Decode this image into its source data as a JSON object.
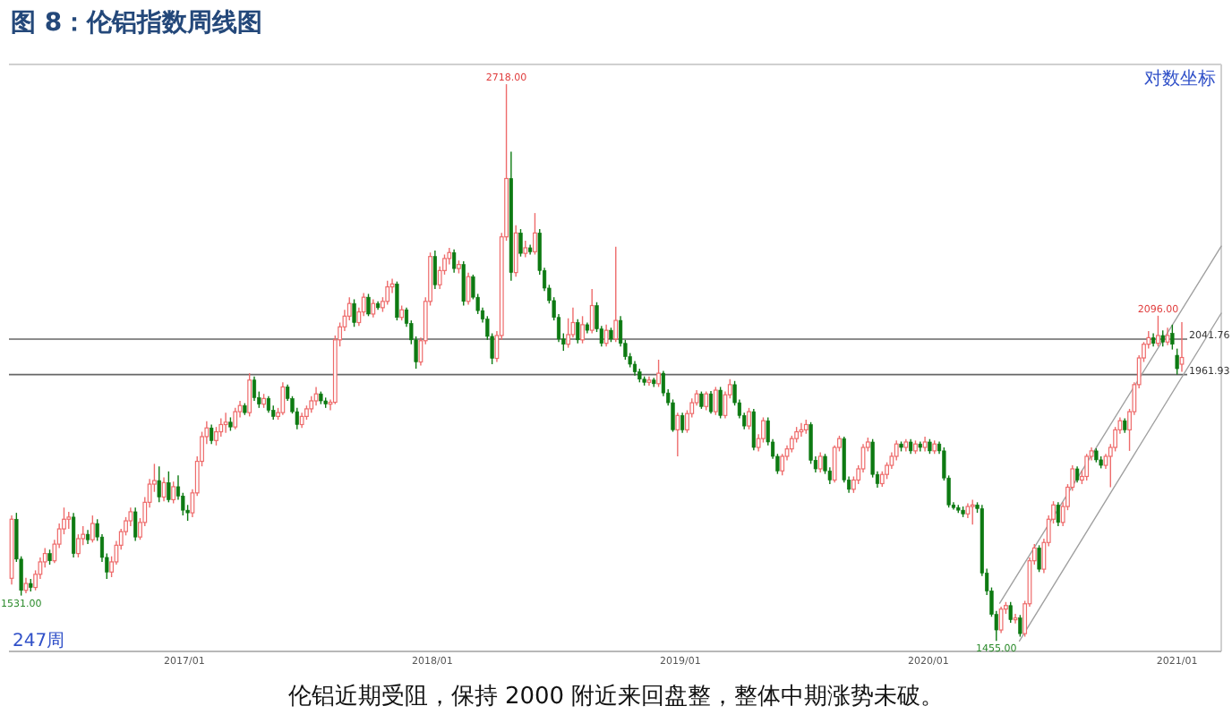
{
  "chart_data": {
    "type": "candlestick",
    "title": "图 8：伦铝指数周线图",
    "annotations": [
      "对数坐标",
      "247周",
      "伦铝近期受阻，保持 2000 附近来回盘整，整体中期涨势未破。",
      {
        "text": "2718.00",
        "x": "2018-04-20",
        "y": 2718
      },
      {
        "text": "1531.00",
        "x": "2016-05-06",
        "y": 1531
      },
      {
        "text": "1455.00",
        "x": "2020-04-10",
        "y": 1455
      },
      {
        "text": "2096.00",
        "x": "2020-12-04",
        "y": 2096
      }
    ],
    "log": true,
    "tick_labels": "x",
    "ylim": [
      1438,
      2779
    ],
    "xlim": [
      "2016-04-18",
      "2021-03-07"
    ],
    "xticks": [
      {
        "value": "2017-01",
        "label": "2017/01"
      },
      {
        "value": "2018-01",
        "label": "2018/01"
      },
      {
        "value": "2019-01",
        "label": "2019/01"
      },
      {
        "value": "2020-01",
        "label": "2020/01"
      },
      {
        "value": "2021-01",
        "label": "2021/01"
      }
    ],
    "x": [
      "2016-04-22",
      "2016-04-29",
      "2016-05-06",
      "2016-05-13",
      "2016-05-20",
      "2016-05-27",
      "2016-06-03",
      "2016-06-10",
      "2016-06-17",
      "2016-06-24",
      "2016-07-01",
      "2016-07-08",
      "2016-07-15",
      "2016-07-22",
      "2016-07-29",
      "2016-08-05",
      "2016-08-12",
      "2016-08-19",
      "2016-08-26",
      "2016-09-02",
      "2016-09-09",
      "2016-09-16",
      "2016-09-23",
      "2016-09-30",
      "2016-10-07",
      "2016-10-14",
      "2016-10-21",
      "2016-10-28",
      "2016-11-04",
      "2016-11-11",
      "2016-11-18",
      "2016-11-25",
      "2016-12-02",
      "2016-12-09",
      "2016-12-16",
      "2016-12-23",
      "2016-12-30",
      "2017-01-06",
      "2017-01-13",
      "2017-01-20",
      "2017-01-27",
      "2017-02-03",
      "2017-02-10",
      "2017-02-17",
      "2017-02-24",
      "2017-03-03",
      "2017-03-10",
      "2017-03-17",
      "2017-03-24",
      "2017-03-31",
      "2017-04-07",
      "2017-04-14",
      "2017-04-21",
      "2017-04-28",
      "2017-05-05",
      "2017-05-12",
      "2017-05-19",
      "2017-05-26",
      "2017-06-02",
      "2017-06-09",
      "2017-06-16",
      "2017-06-23",
      "2017-06-30",
      "2017-07-07",
      "2017-07-14",
      "2017-07-21",
      "2017-07-28",
      "2017-08-04",
      "2017-08-11",
      "2017-08-18",
      "2017-08-25",
      "2017-09-01",
      "2017-09-08",
      "2017-09-15",
      "2017-09-22",
      "2017-09-29",
      "2017-10-06",
      "2017-10-13",
      "2017-10-20",
      "2017-10-27",
      "2017-11-03",
      "2017-11-10",
      "2017-11-17",
      "2017-11-24",
      "2017-12-01",
      "2017-12-08",
      "2017-12-15",
      "2017-12-22",
      "2017-12-29",
      "2018-01-05",
      "2018-01-12",
      "2018-01-19",
      "2018-01-26",
      "2018-02-02",
      "2018-02-09",
      "2018-02-16",
      "2018-02-23",
      "2018-03-02",
      "2018-03-09",
      "2018-03-16",
      "2018-03-23",
      "2018-03-30",
      "2018-04-06",
      "2018-04-13",
      "2018-04-20",
      "2018-04-27",
      "2018-05-04",
      "2018-05-11",
      "2018-05-18",
      "2018-05-25",
      "2018-06-01",
      "2018-06-08",
      "2018-06-15",
      "2018-06-22",
      "2018-06-29",
      "2018-07-06",
      "2018-07-13",
      "2018-07-20",
      "2018-07-27",
      "2018-08-03",
      "2018-08-10",
      "2018-08-17",
      "2018-08-24",
      "2018-08-31",
      "2018-09-07",
      "2018-09-14",
      "2018-09-21",
      "2018-09-28",
      "2018-10-05",
      "2018-10-12",
      "2018-10-19",
      "2018-10-26",
      "2018-11-02",
      "2018-11-09",
      "2018-11-16",
      "2018-11-23",
      "2018-11-30",
      "2018-12-07",
      "2018-12-14",
      "2018-12-21",
      "2018-12-28",
      "2019-01-04",
      "2019-01-11",
      "2019-01-18",
      "2019-01-25",
      "2019-02-01",
      "2019-02-08",
      "2019-02-15",
      "2019-02-22",
      "2019-03-01",
      "2019-03-08",
      "2019-03-15",
      "2019-03-22",
      "2019-03-29",
      "2019-04-05",
      "2019-04-12",
      "2019-04-19",
      "2019-04-26",
      "2019-05-03",
      "2019-05-10",
      "2019-05-17",
      "2019-05-24",
      "2019-05-31",
      "2019-06-07",
      "2019-06-14",
      "2019-06-21",
      "2019-06-28",
      "2019-07-05",
      "2019-07-12",
      "2019-07-19",
      "2019-07-26",
      "2019-08-02",
      "2019-08-09",
      "2019-08-16",
      "2019-08-23",
      "2019-08-30",
      "2019-09-06",
      "2019-09-13",
      "2019-09-20",
      "2019-09-27",
      "2019-10-04",
      "2019-10-11",
      "2019-10-18",
      "2019-10-25",
      "2019-11-01",
      "2019-11-08",
      "2019-11-15",
      "2019-11-22",
      "2019-11-29",
      "2019-12-06",
      "2019-12-13",
      "2019-12-20",
      "2019-12-27",
      "2020-01-03",
      "2020-01-10",
      "2020-01-17",
      "2020-01-24",
      "2020-01-31",
      "2020-02-07",
      "2020-02-14",
      "2020-02-21",
      "2020-02-28",
      "2020-03-06",
      "2020-03-13",
      "2020-03-20",
      "2020-03-27",
      "2020-04-03",
      "2020-04-10",
      "2020-04-17",
      "2020-04-24",
      "2020-05-01",
      "2020-05-08",
      "2020-05-15",
      "2020-05-22",
      "2020-05-29",
      "2020-06-05",
      "2020-06-12",
      "2020-06-19",
      "2020-06-26",
      "2020-07-03",
      "2020-07-10",
      "2020-07-17",
      "2020-07-24",
      "2020-07-31",
      "2020-08-07",
      "2020-08-14",
      "2020-08-21",
      "2020-08-28",
      "2020-09-04",
      "2020-09-11",
      "2020-09-18",
      "2020-09-25",
      "2020-10-02",
      "2020-10-09",
      "2020-10-16",
      "2020-10-23",
      "2020-10-30",
      "2020-11-06",
      "2020-11-13",
      "2020-11-20",
      "2020-11-27",
      "2020-12-04",
      "2020-12-11",
      "2020-12-18",
      "2020-12-25",
      "2021-01-01",
      "2021-01-08"
    ],
    "ohlc": [
      [
        1561,
        1675,
        1550,
        1668
      ],
      [
        1668,
        1680,
        1590,
        1595
      ],
      [
        1595,
        1600,
        1531,
        1540
      ],
      [
        1540,
        1562,
        1535,
        1552
      ],
      [
        1552,
        1560,
        1538,
        1545
      ],
      [
        1545,
        1575,
        1540,
        1568
      ],
      [
        1568,
        1598,
        1560,
        1590
      ],
      [
        1590,
        1615,
        1580,
        1605
      ],
      [
        1605,
        1612,
        1585,
        1592
      ],
      [
        1592,
        1630,
        1588,
        1622
      ],
      [
        1622,
        1660,
        1615,
        1650
      ],
      [
        1650,
        1690,
        1640,
        1668
      ],
      [
        1668,
        1682,
        1650,
        1672
      ],
      [
        1672,
        1680,
        1598,
        1605
      ],
      [
        1605,
        1640,
        1598,
        1632
      ],
      [
        1632,
        1655,
        1620,
        1640
      ],
      [
        1640,
        1648,
        1622,
        1630
      ],
      [
        1630,
        1675,
        1625,
        1660
      ],
      [
        1660,
        1668,
        1628,
        1635
      ],
      [
        1635,
        1640,
        1590,
        1598
      ],
      [
        1598,
        1605,
        1560,
        1572
      ],
      [
        1572,
        1600,
        1563,
        1590
      ],
      [
        1590,
        1628,
        1585,
        1620
      ],
      [
        1620,
        1650,
        1612,
        1645
      ],
      [
        1645,
        1672,
        1638,
        1665
      ],
      [
        1665,
        1690,
        1655,
        1682
      ],
      [
        1682,
        1690,
        1628,
        1635
      ],
      [
        1635,
        1670,
        1630,
        1662
      ],
      [
        1662,
        1710,
        1655,
        1700
      ],
      [
        1700,
        1745,
        1690,
        1735
      ],
      [
        1735,
        1775,
        1720,
        1742
      ],
      [
        1742,
        1770,
        1700,
        1710
      ],
      [
        1710,
        1748,
        1702,
        1738
      ],
      [
        1738,
        1760,
        1700,
        1705
      ],
      [
        1705,
        1740,
        1698,
        1730
      ],
      [
        1730,
        1752,
        1705,
        1712
      ],
      [
        1712,
        1718,
        1675,
        1685
      ],
      [
        1685,
        1695,
        1665,
        1680
      ],
      [
        1680,
        1725,
        1672,
        1718
      ],
      [
        1718,
        1790,
        1712,
        1780
      ],
      [
        1780,
        1840,
        1770,
        1830
      ],
      [
        1830,
        1862,
        1815,
        1848
      ],
      [
        1848,
        1855,
        1815,
        1822
      ],
      [
        1822,
        1850,
        1812,
        1840
      ],
      [
        1840,
        1868,
        1830,
        1855
      ],
      [
        1855,
        1880,
        1838,
        1860
      ],
      [
        1860,
        1870,
        1842,
        1850
      ],
      [
        1850,
        1890,
        1845,
        1882
      ],
      [
        1882,
        1905,
        1870,
        1895
      ],
      [
        1895,
        1900,
        1875,
        1880
      ],
      [
        1880,
        1965,
        1872,
        1950
      ],
      [
        1950,
        1958,
        1905,
        1912
      ],
      [
        1912,
        1925,
        1890,
        1898
      ],
      [
        1898,
        1920,
        1890,
        1910
      ],
      [
        1910,
        1915,
        1880,
        1885
      ],
      [
        1885,
        1895,
        1865,
        1872
      ],
      [
        1872,
        1890,
        1865,
        1880
      ],
      [
        1880,
        1945,
        1875,
        1935
      ],
      [
        1935,
        1940,
        1905,
        1910
      ],
      [
        1910,
        1915,
        1878,
        1882
      ],
      [
        1882,
        1890,
        1845,
        1855
      ],
      [
        1855,
        1880,
        1848,
        1872
      ],
      [
        1872,
        1895,
        1865,
        1888
      ],
      [
        1888,
        1915,
        1880,
        1905
      ],
      [
        1905,
        1935,
        1895,
        1920
      ],
      [
        1920,
        1925,
        1898,
        1905
      ],
      [
        1905,
        1912,
        1890,
        1898
      ],
      [
        1898,
        1908,
        1885,
        1902
      ],
      [
        1902,
        2050,
        1898,
        2040
      ],
      [
        2040,
        2080,
        2025,
        2070
      ],
      [
        2070,
        2110,
        2060,
        2095
      ],
      [
        2095,
        2140,
        2085,
        2125
      ],
      [
        2125,
        2135,
        2070,
        2080
      ],
      [
        2080,
        2115,
        2072,
        2105
      ],
      [
        2105,
        2150,
        2095,
        2140
      ],
      [
        2140,
        2148,
        2095,
        2100
      ],
      [
        2100,
        2135,
        2092,
        2125
      ],
      [
        2125,
        2130,
        2110,
        2115
      ],
      [
        2115,
        2140,
        2105,
        2130
      ],
      [
        2130,
        2180,
        2122,
        2165
      ],
      [
        2165,
        2185,
        2150,
        2172
      ],
      [
        2172,
        2178,
        2085,
        2092
      ],
      [
        2092,
        2120,
        2085,
        2110
      ],
      [
        2110,
        2115,
        2070,
        2078
      ],
      [
        2078,
        2085,
        2030,
        2040
      ],
      [
        2040,
        2048,
        1975,
        1990
      ],
      [
        1990,
        2045,
        1982,
        2038
      ],
      [
        2038,
        2140,
        2030,
        2130
      ],
      [
        2130,
        2250,
        2120,
        2240
      ],
      [
        2240,
        2255,
        2160,
        2170
      ],
      [
        2170,
        2215,
        2160,
        2205
      ],
      [
        2205,
        2245,
        2195,
        2235
      ],
      [
        2235,
        2262,
        2220,
        2250
      ],
      [
        2250,
        2258,
        2200,
        2210
      ],
      [
        2210,
        2230,
        2198,
        2220
      ],
      [
        2220,
        2228,
        2120,
        2130
      ],
      [
        2130,
        2200,
        2122,
        2190
      ],
      [
        2190,
        2195,
        2135,
        2140
      ],
      [
        2140,
        2148,
        2100,
        2108
      ],
      [
        2108,
        2115,
        2080,
        2088
      ],
      [
        2088,
        2095,
        2040,
        2048
      ],
      [
        2048,
        2055,
        1985,
        1998
      ],
      [
        1998,
        2060,
        1990,
        2050
      ],
      [
        2050,
        2300,
        2040,
        2290
      ],
      [
        2290,
        2718,
        2280,
        2445
      ],
      [
        2445,
        2520,
        2180,
        2200
      ],
      [
        2200,
        2320,
        2190,
        2300
      ],
      [
        2300,
        2310,
        2240,
        2248
      ],
      [
        2248,
        2280,
        2238,
        2262
      ],
      [
        2262,
        2270,
        2245,
        2252
      ],
      [
        2252,
        2352,
        2245,
        2300
      ],
      [
        2300,
        2310,
        2195,
        2205
      ],
      [
        2205,
        2212,
        2155,
        2162
      ],
      [
        2162,
        2170,
        2125,
        2132
      ],
      [
        2132,
        2140,
        2085,
        2092
      ],
      [
        2092,
        2100,
        2035,
        2042
      ],
      [
        2042,
        2055,
        2015,
        2030
      ],
      [
        2030,
        2090,
        2022,
        2052
      ],
      [
        2052,
        2115,
        2045,
        2080
      ],
      [
        2080,
        2088,
        2032,
        2040
      ],
      [
        2040,
        2095,
        2032,
        2075
      ],
      [
        2075,
        2080,
        2055,
        2062
      ],
      [
        2062,
        2160,
        2055,
        2120
      ],
      [
        2120,
        2128,
        2058,
        2065
      ],
      [
        2065,
        2072,
        2025,
        2032
      ],
      [
        2032,
        2075,
        2025,
        2062
      ],
      [
        2062,
        2068,
        2035,
        2042
      ],
      [
        2042,
        2265,
        2035,
        2085
      ],
      [
        2085,
        2095,
        2025,
        2032
      ],
      [
        2032,
        2040,
        1995,
        2002
      ],
      [
        2002,
        2010,
        1978,
        1985
      ],
      [
        1985,
        1992,
        1960,
        1968
      ],
      [
        1968,
        1975,
        1945,
        1952
      ],
      [
        1952,
        1958,
        1938,
        1945
      ],
      [
        1945,
        1958,
        1938,
        1950
      ],
      [
        1950,
        1955,
        1935,
        1942
      ],
      [
        1942,
        1995,
        1935,
        1965
      ],
      [
        1965,
        1970,
        1915,
        1922
      ],
      [
        1922,
        1930,
        1895,
        1901
      ],
      [
        1901,
        1908,
        1840,
        1844
      ],
      [
        1844,
        1880,
        1790,
        1874
      ],
      [
        1874,
        1880,
        1838,
        1844
      ],
      [
        1844,
        1885,
        1838,
        1878
      ],
      [
        1878,
        1910,
        1870,
        1901
      ],
      [
        1901,
        1928,
        1895,
        1920
      ],
      [
        1920,
        1925,
        1888,
        1893
      ],
      [
        1893,
        1925,
        1885,
        1920
      ],
      [
        1920,
        1926,
        1878,
        1882
      ],
      [
        1882,
        1935,
        1875,
        1928
      ],
      [
        1928,
        1935,
        1868,
        1874
      ],
      [
        1874,
        1925,
        1868,
        1918
      ],
      [
        1918,
        1952,
        1910,
        1940
      ],
      [
        1940,
        1948,
        1895,
        1901
      ],
      [
        1901,
        1908,
        1868,
        1874
      ],
      [
        1874,
        1880,
        1845,
        1852
      ],
      [
        1852,
        1890,
        1845,
        1882
      ],
      [
        1882,
        1888,
        1802,
        1808
      ],
      [
        1808,
        1835,
        1800,
        1826
      ],
      [
        1826,
        1870,
        1818,
        1863
      ],
      [
        1863,
        1870,
        1812,
        1819
      ],
      [
        1819,
        1825,
        1785,
        1790
      ],
      [
        1790,
        1795,
        1755,
        1761
      ],
      [
        1761,
        1795,
        1752,
        1790
      ],
      [
        1790,
        1812,
        1782,
        1805
      ],
      [
        1805,
        1832,
        1798,
        1826
      ],
      [
        1826,
        1850,
        1818,
        1840
      ],
      [
        1840,
        1858,
        1830,
        1844
      ],
      [
        1844,
        1865,
        1836,
        1855
      ],
      [
        1855,
        1860,
        1775,
        1782
      ],
      [
        1782,
        1790,
        1758,
        1765
      ],
      [
        1765,
        1798,
        1758,
        1790
      ],
      [
        1790,
        1795,
        1755,
        1761
      ],
      [
        1761,
        1768,
        1735,
        1743
      ],
      [
        1743,
        1812,
        1738,
        1808
      ],
      [
        1808,
        1832,
        1800,
        1826
      ],
      [
        1826,
        1830,
        1738,
        1743
      ],
      [
        1743,
        1750,
        1718,
        1725
      ],
      [
        1725,
        1750,
        1718,
        1743
      ],
      [
        1743,
        1772,
        1735,
        1765
      ],
      [
        1765,
        1815,
        1758,
        1808
      ],
      [
        1808,
        1828,
        1800,
        1819
      ],
      [
        1819,
        1825,
        1748,
        1754
      ],
      [
        1754,
        1760,
        1728,
        1736
      ],
      [
        1736,
        1760,
        1730,
        1754
      ],
      [
        1754,
        1778,
        1745,
        1772
      ],
      [
        1772,
        1798,
        1765,
        1790
      ],
      [
        1790,
        1822,
        1782,
        1815
      ],
      [
        1815,
        1820,
        1800,
        1808
      ],
      [
        1808,
        1825,
        1800,
        1819
      ],
      [
        1819,
        1825,
        1795,
        1801
      ],
      [
        1801,
        1822,
        1795,
        1815
      ],
      [
        1815,
        1820,
        1800,
        1808
      ],
      [
        1808,
        1830,
        1800,
        1819
      ],
      [
        1819,
        1825,
        1795,
        1801
      ],
      [
        1801,
        1822,
        1795,
        1815
      ],
      [
        1815,
        1820,
        1795,
        1801
      ],
      [
        1801,
        1808,
        1742,
        1747
      ],
      [
        1747,
        1752,
        1690,
        1695
      ],
      [
        1695,
        1700,
        1686,
        1690
      ],
      [
        1690,
        1695,
        1680,
        1685
      ],
      [
        1685,
        1692,
        1672,
        1678
      ],
      [
        1678,
        1698,
        1670,
        1692
      ],
      [
        1692,
        1705,
        1658,
        1695
      ],
      [
        1695,
        1700,
        1680,
        1688
      ],
      [
        1688,
        1695,
        1565,
        1570
      ],
      [
        1570,
        1578,
        1532,
        1539
      ],
      [
        1539,
        1545,
        1495,
        1499
      ],
      [
        1499,
        1505,
        1455,
        1473
      ],
      [
        1473,
        1512,
        1468,
        1508
      ],
      [
        1508,
        1520,
        1500,
        1514
      ],
      [
        1514,
        1520,
        1485,
        1490
      ],
      [
        1490,
        1500,
        1484,
        1493
      ],
      [
        1493,
        1498,
        1462,
        1467
      ],
      [
        1467,
        1522,
        1462,
        1517
      ],
      [
        1517,
        1598,
        1512,
        1592
      ],
      [
        1592,
        1622,
        1585,
        1615
      ],
      [
        1615,
        1620,
        1572,
        1577
      ],
      [
        1577,
        1632,
        1570,
        1625
      ],
      [
        1625,
        1675,
        1618,
        1668
      ],
      [
        1668,
        1702,
        1660,
        1695
      ],
      [
        1695,
        1700,
        1655,
        1662
      ],
      [
        1662,
        1700,
        1655,
        1692
      ],
      [
        1692,
        1735,
        1685,
        1729
      ],
      [
        1729,
        1772,
        1722,
        1765
      ],
      [
        1765,
        1770,
        1738,
        1743
      ],
      [
        1743,
        1762,
        1735,
        1750
      ],
      [
        1750,
        1795,
        1742,
        1790
      ],
      [
        1790,
        1808,
        1782,
        1801
      ],
      [
        1801,
        1806,
        1778,
        1783
      ],
      [
        1783,
        1790,
        1766,
        1772
      ],
      [
        1772,
        1795,
        1765,
        1790
      ],
      [
        1790,
        1815,
        1729,
        1808
      ],
      [
        1808,
        1850,
        1800,
        1844
      ],
      [
        1844,
        1870,
        1836,
        1863
      ],
      [
        1863,
        1868,
        1838,
        1844
      ],
      [
        1844,
        1888,
        1801,
        1882
      ],
      [
        1882,
        1945,
        1875,
        1940
      ],
      [
        1940,
        2005,
        1932,
        1999
      ],
      [
        1999,
        2035,
        1990,
        2030
      ],
      [
        2030,
        2060,
        2020,
        2045
      ],
      [
        2045,
        2055,
        2025,
        2032
      ],
      [
        2032,
        2096,
        2025,
        2050
      ],
      [
        2050,
        2062,
        2025,
        2035
      ],
      [
        2035,
        2068,
        2028,
        2050
      ],
      [
        2055,
        2075,
        2018,
        2030
      ],
      [
        2005,
        2020,
        1962,
        1975
      ],
      [
        1985,
        2081,
        1968,
        2000
      ]
    ],
    "series": [
      {
        "type": "line",
        "x": [
          "2020-04-15",
          "2021-03-07"
        ],
        "values": [
          1518,
          2266
        ],
        "color": "#a0a0a0"
      },
      {
        "type": "line",
        "x": [
          "2020-05-14",
          "2021-03-07"
        ],
        "values": [
          1455,
          2102
        ],
        "color": "#a0a0a0"
      }
    ],
    "ref_lines": [
      {
        "axis": "y",
        "value": 2041.76,
        "label": "2041.76",
        "color": "#666666"
      },
      {
        "axis": "y",
        "value": 1961.93,
        "label": "1961.93",
        "color": "#666666"
      }
    ]
  }
}
